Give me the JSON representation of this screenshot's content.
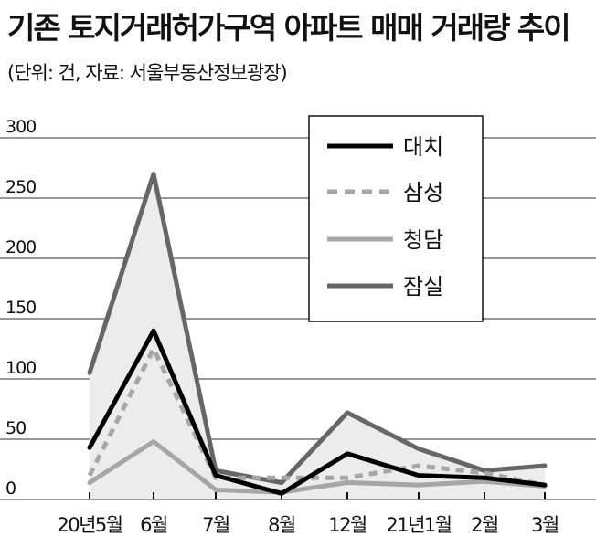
{
  "title": "기존 토지거래허가구역 아파트 매매 거래량 추이",
  "subtitle": "(단위: 건, 자료: 서울부동산정보광장)",
  "chart_data": {
    "type": "line",
    "title": "기존 토지거래허가구역 아파트 매매 거래량 추이",
    "subtitle": "(단위: 건, 자료: 서울부동산정보광장)",
    "categories": [
      "20년5월",
      "6월",
      "7월",
      "8월",
      "12월",
      "21년1월",
      "2월",
      "3월"
    ],
    "yticks": [
      "0",
      "50",
      "100",
      "150",
      "200",
      "250",
      "300"
    ],
    "ylim": [
      0,
      300
    ],
    "grid": true,
    "legend_position": "top-right",
    "series": [
      {
        "name": "대치",
        "values": [
          43,
          140,
          20,
          5,
          38,
          20,
          18,
          12
        ],
        "color": "#000000",
        "style": "solid"
      },
      {
        "name": "삼성",
        "values": [
          20,
          125,
          18,
          18,
          18,
          28,
          22,
          12
        ],
        "color": "#a6a6a6",
        "style": "dashed"
      },
      {
        "name": "청담",
        "values": [
          14,
          48,
          8,
          6,
          14,
          12,
          15,
          11
        ],
        "color": "#a6a6a6",
        "style": "solid"
      },
      {
        "name": "잠실",
        "values": [
          105,
          270,
          24,
          14,
          72,
          42,
          24,
          28
        ],
        "color": "#666666",
        "style": "solid"
      }
    ]
  }
}
